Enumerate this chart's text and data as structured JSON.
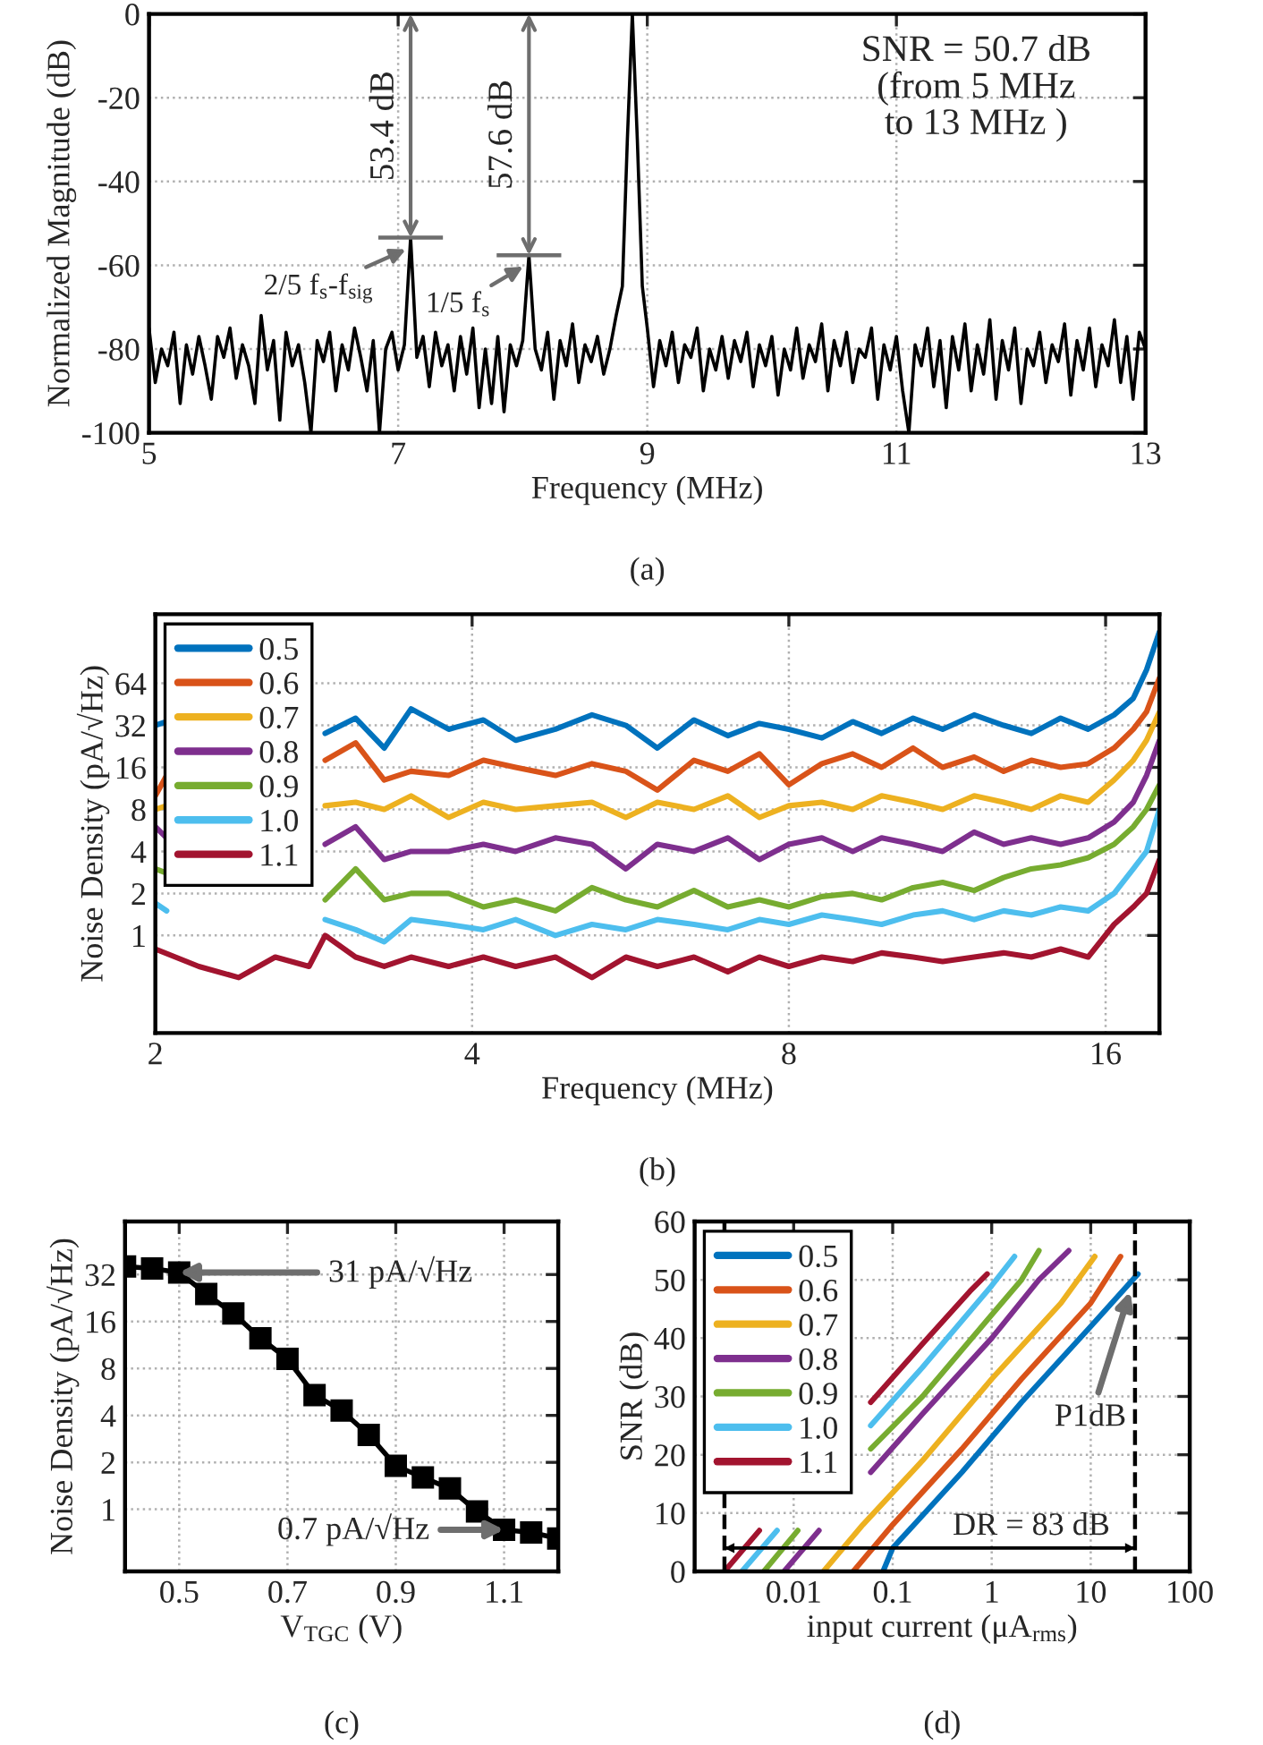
{
  "chart_data": [
    {
      "type": "line",
      "xlabel": "Frequency (MHz)",
      "ylabel": "Normalized Magnitude (dB)",
      "xlim": [
        5,
        13
      ],
      "ylim": [
        -100,
        0
      ],
      "xticks": [
        5,
        7,
        9,
        11,
        13
      ],
      "yticks": [
        -100,
        -80,
        -60,
        -40,
        -20,
        0
      ],
      "grid": true,
      "series": [
        {
          "color": "#000000",
          "x": [
            5.0,
            5.05,
            5.1,
            5.15,
            5.2,
            5.25,
            5.3,
            5.35,
            5.4,
            5.45,
            5.5,
            5.55,
            5.6,
            5.65,
            5.7,
            5.75,
            5.8,
            5.85,
            5.9,
            5.95,
            6.0,
            6.05,
            6.1,
            6.15,
            6.2,
            6.25,
            6.3,
            6.35,
            6.4,
            6.45,
            6.5,
            6.55,
            6.6,
            6.65,
            6.7,
            6.75,
            6.8,
            6.85,
            6.9,
            6.95,
            7.0,
            7.05,
            7.1,
            7.15,
            7.2,
            7.25,
            7.3,
            7.35,
            7.4,
            7.45,
            7.5,
            7.55,
            7.6,
            7.65,
            7.7,
            7.75,
            7.8,
            7.85,
            7.9,
            7.95,
            8.0,
            8.05,
            8.1,
            8.15,
            8.2,
            8.25,
            8.3,
            8.35,
            8.4,
            8.45,
            8.5,
            8.55,
            8.6,
            8.65,
            8.7,
            8.75,
            8.8,
            8.84,
            8.88,
            8.92,
            8.96,
            9.0,
            9.05,
            9.1,
            9.15,
            9.2,
            9.25,
            9.3,
            9.35,
            9.4,
            9.45,
            9.5,
            9.55,
            9.6,
            9.65,
            9.7,
            9.75,
            9.8,
            9.85,
            9.9,
            9.95,
            10.0,
            10.05,
            10.1,
            10.15,
            10.2,
            10.25,
            10.3,
            10.35,
            10.4,
            10.45,
            10.5,
            10.55,
            10.6,
            10.65,
            10.7,
            10.75,
            10.8,
            10.85,
            10.9,
            10.95,
            11.0,
            11.05,
            11.1,
            11.15,
            11.2,
            11.25,
            11.3,
            11.35,
            11.4,
            11.45,
            11.5,
            11.55,
            11.6,
            11.65,
            11.7,
            11.75,
            11.8,
            11.85,
            11.9,
            11.95,
            12.0,
            12.05,
            12.1,
            12.15,
            12.2,
            12.25,
            12.3,
            12.35,
            12.4,
            12.45,
            12.5,
            12.55,
            12.6,
            12.65,
            12.7,
            12.75,
            12.8,
            12.85,
            12.9,
            12.95,
            13.0
          ],
          "values": [
            -75,
            -88,
            -80,
            -84,
            -76,
            -93,
            -79,
            -86,
            -77,
            -84,
            -92,
            -77,
            -82,
            -75,
            -87,
            -79,
            -84,
            -93,
            -72,
            -85,
            -78,
            -97,
            -76,
            -84,
            -79,
            -88,
            -100,
            -78,
            -83,
            -76,
            -90,
            -79,
            -85,
            -75,
            -82,
            -90,
            -78,
            -100,
            -80,
            -76,
            -85,
            -79,
            -53.4,
            -82,
            -77,
            -89,
            -76,
            -84,
            -79,
            -90,
            -77,
            -86,
            -75,
            -94,
            -80,
            -93,
            -77,
            -95,
            -79,
            -84,
            -78,
            -57.6,
            -80,
            -85,
            -76,
            -92,
            -78,
            -84,
            -74,
            -88,
            -79,
            -83,
            -77,
            -86,
            -80,
            -72,
            -65,
            -30,
            0,
            -30,
            -65,
            -75,
            -89,
            -78,
            -84,
            -76,
            -88,
            -79,
            -82,
            -75,
            -90,
            -80,
            -85,
            -77,
            -87,
            -78,
            -83,
            -76,
            -89,
            -79,
            -84,
            -77,
            -91,
            -80,
            -85,
            -75,
            -87,
            -79,
            -83,
            -74,
            -90,
            -78,
            -84,
            -76,
            -88,
            -80,
            -82,
            -75,
            -92,
            -79,
            -85,
            -77,
            -90,
            -100,
            -79,
            -84,
            -75,
            -89,
            -78,
            -94,
            -77,
            -85,
            -74,
            -90,
            -79,
            -86,
            -73,
            -92,
            -78,
            -85,
            -75,
            -93,
            -80,
            -84,
            -76,
            -88,
            -79,
            -83,
            -74,
            -91,
            -78,
            -85,
            -75,
            -89,
            -79,
            -84,
            -73,
            -88,
            -77,
            -92,
            -76,
            -80
          ]
        }
      ],
      "annotations": [
        {
          "text": "53.4 dB",
          "x": 7.1,
          "y": -53.4
        },
        {
          "text": "57.6 dB",
          "x": 8.05,
          "y": -57.6
        },
        {
          "text": "2/5 f$_{s}$-f$_{sig}$",
          "x": 7.08,
          "y": -56
        },
        {
          "text": "1/5 f$_{s}$",
          "x": 8.02,
          "y": -60
        },
        "SNR = 50.7 dB\n(from 5 MHz\nto 13 MHz )",
        "(a)"
      ]
    },
    {
      "type": "line",
      "xlabel": "Frequency (MHz)",
      "ylabel": "Noise Density (pA/√Hz)",
      "log": "xy",
      "xlim": [
        2,
        18
      ],
      "ylim": [
        0.2,
        200
      ],
      "xticks": [
        2,
        4,
        8,
        16
      ],
      "yticks": [
        1,
        2,
        4,
        8,
        16,
        32,
        64
      ],
      "grid": true,
      "legend": "top left",
      "series": [
        {
          "name": "0.5",
          "color": "#0072bd",
          "x": [
            2.0,
            2.05,
            2.1,
            2.9,
            3.1,
            3.3,
            3.5,
            3.8,
            4.1,
            4.4,
            4.8,
            5.2,
            5.6,
            6.0,
            6.5,
            7.0,
            7.5,
            8.0,
            8.6,
            9.2,
            9.8,
            10.5,
            11.2,
            12.0,
            12.8,
            13.6,
            14.5,
            15.4,
            16.3,
            17.0,
            17.5,
            18.0
          ],
          "values": [
            32,
            34,
            null,
            28,
            36,
            22,
            42,
            30,
            35,
            25,
            30,
            38,
            32,
            22,
            35,
            27,
            33,
            30,
            26,
            34,
            28,
            36,
            30,
            38,
            32,
            28,
            36,
            30,
            38,
            50,
            80,
            150
          ]
        },
        {
          "name": "0.6",
          "color": "#d95319",
          "x": [
            2.0,
            2.05,
            2.1,
            2.9,
            3.1,
            3.3,
            3.5,
            3.8,
            4.1,
            4.4,
            4.8,
            5.2,
            5.6,
            6.0,
            6.5,
            7.0,
            7.5,
            8.0,
            8.6,
            9.2,
            9.8,
            10.5,
            11.2,
            12.0,
            12.8,
            13.6,
            14.5,
            15.4,
            16.3,
            17.0,
            17.5,
            18.0
          ],
          "values": [
            10,
            14,
            null,
            18,
            24,
            13,
            15,
            14,
            18,
            16,
            14,
            17,
            15,
            11,
            18,
            15,
            20,
            12,
            17,
            20,
            16,
            22,
            16,
            19,
            15,
            18,
            16,
            17,
            22,
            30,
            40,
            70
          ]
        },
        {
          "name": "0.7",
          "color": "#edb120",
          "x": [
            2.0,
            2.05,
            2.1,
            2.9,
            3.1,
            3.3,
            3.5,
            3.8,
            4.1,
            4.4,
            4.8,
            5.2,
            5.6,
            6.0,
            6.5,
            7.0,
            7.5,
            8.0,
            8.6,
            9.2,
            9.8,
            10.5,
            11.2,
            12.0,
            12.8,
            13.6,
            14.5,
            15.4,
            16.3,
            17.0,
            17.5,
            18.0
          ],
          "values": [
            8,
            8.5,
            null,
            8.5,
            9,
            8,
            10,
            7,
            9,
            8,
            8.5,
            9,
            7,
            9,
            8,
            10,
            7,
            8.5,
            9,
            8,
            10,
            9,
            8,
            10,
            9,
            8,
            10,
            9,
            13,
            18,
            25,
            40
          ]
        },
        {
          "name": "0.8",
          "color": "#7e2f8e",
          "x": [
            2.0,
            2.05,
            2.1,
            2.9,
            3.1,
            3.3,
            3.5,
            3.8,
            4.1,
            4.4,
            4.8,
            5.2,
            5.6,
            6.0,
            6.5,
            7.0,
            7.5,
            8.0,
            8.6,
            9.2,
            9.8,
            10.5,
            11.2,
            12.0,
            12.8,
            13.6,
            14.5,
            15.4,
            16.3,
            17.0,
            17.5,
            18.0
          ],
          "values": [
            6,
            5,
            null,
            4.5,
            6,
            3.5,
            4,
            4,
            4.5,
            4,
            5,
            4.5,
            3,
            4.5,
            4,
            5,
            3.5,
            4.5,
            5,
            4,
            5,
            4.5,
            4,
            5.5,
            4.5,
            5,
            4.5,
            5,
            6.5,
            9,
            14,
            25
          ]
        },
        {
          "name": "0.9",
          "color": "#77ac30",
          "x": [
            2.0,
            2.05,
            2.1,
            2.9,
            3.1,
            3.3,
            3.5,
            3.8,
            4.1,
            4.4,
            4.8,
            5.2,
            5.6,
            6.0,
            6.5,
            7.0,
            7.5,
            8.0,
            8.6,
            9.2,
            9.8,
            10.5,
            11.2,
            12.0,
            12.8,
            13.6,
            14.5,
            15.4,
            16.3,
            17.0,
            17.5,
            18.0
          ],
          "values": [
            3,
            2.8,
            null,
            1.8,
            3,
            1.8,
            2,
            2,
            1.6,
            1.8,
            1.5,
            2.2,
            1.8,
            1.6,
            2.1,
            1.6,
            1.8,
            1.6,
            1.9,
            2,
            1.8,
            2.2,
            2.4,
            2.1,
            2.6,
            3,
            3.2,
            3.6,
            4.5,
            6,
            8,
            12
          ]
        },
        {
          "name": "1.0",
          "color": "#4dbeee",
          "x": [
            2.0,
            2.05,
            2.1,
            2.9,
            3.1,
            3.3,
            3.5,
            3.8,
            4.1,
            4.4,
            4.8,
            5.2,
            5.6,
            6.0,
            6.5,
            7.0,
            7.5,
            8.0,
            8.6,
            9.2,
            9.8,
            10.5,
            11.2,
            12.0,
            12.8,
            13.6,
            14.5,
            15.4,
            16.3,
            17.0,
            17.5,
            18.0
          ],
          "values": [
            1.7,
            1.5,
            null,
            1.3,
            1.1,
            0.9,
            1.3,
            1.2,
            1.1,
            1.3,
            1.0,
            1.2,
            1.1,
            1.3,
            1.2,
            1.1,
            1.3,
            1.2,
            1.4,
            1.3,
            1.2,
            1.4,
            1.5,
            1.3,
            1.5,
            1.4,
            1.6,
            1.5,
            2,
            3,
            4,
            8
          ]
        },
        {
          "name": "1.1",
          "color": "#a2142f",
          "x": [
            2.0,
            2.2,
            2.4,
            2.6,
            2.8,
            2.9,
            3.1,
            3.3,
            3.5,
            3.8,
            4.1,
            4.4,
            4.8,
            5.2,
            5.6,
            6.0,
            6.5,
            7.0,
            7.5,
            8.0,
            8.6,
            9.2,
            9.8,
            10.5,
            11.2,
            12.0,
            12.8,
            13.6,
            14.5,
            15.4,
            16.3,
            17.0,
            17.5,
            18.0
          ],
          "values": [
            0.8,
            0.6,
            0.5,
            0.7,
            0.6,
            1.0,
            0.7,
            0.6,
            0.7,
            0.6,
            0.7,
            0.6,
            0.7,
            0.5,
            0.7,
            0.6,
            0.7,
            0.55,
            0.7,
            0.6,
            0.7,
            0.65,
            0.75,
            0.7,
            0.65,
            0.7,
            0.75,
            0.7,
            0.8,
            0.7,
            1.2,
            1.6,
            2,
            3.5
          ]
        }
      ],
      "annotations": [
        "(b)"
      ]
    },
    {
      "type": "line",
      "xlabel": "V$_{TGC}$ (V)",
      "ylabel": "Noise Density (pA/√Hz)",
      "log": "y",
      "xlim": [
        0.4,
        1.2
      ],
      "ylim": [
        0.4,
        70
      ],
      "xticks": [
        0.5,
        0.7,
        0.9,
        1.1
      ],
      "yticks": [
        1,
        2,
        4,
        8,
        16,
        32
      ],
      "grid": true,
      "marker": "square",
      "series": [
        {
          "color": "#000000",
          "x": [
            0.4,
            0.45,
            0.5,
            0.55,
            0.6,
            0.65,
            0.7,
            0.75,
            0.8,
            0.85,
            0.9,
            0.95,
            1.0,
            1.05,
            1.1,
            1.15,
            1.2
          ],
          "values": [
            36,
            35,
            33,
            24,
            18,
            12.5,
            9.2,
            5.4,
            4.3,
            3.0,
            1.9,
            1.6,
            1.36,
            0.97,
            0.74,
            0.71,
            0.65
          ]
        }
      ],
      "annotations": [
        {
          "text": "31 pA/√Hz",
          "x": 0.5,
          "y": 33
        },
        {
          "text": "0.7 pA/√Hz",
          "x": 1.1,
          "y": 0.74
        },
        "(c)"
      ]
    },
    {
      "type": "line",
      "xlabel": "input current (μA$_{rms}$)",
      "ylabel": "SNR (dB)",
      "log": "x",
      "xlim": [
        0.001,
        100
      ],
      "ylim": [
        0,
        60
      ],
      "xticks": [
        0.01,
        0.1,
        1,
        10,
        100
      ],
      "yticks": [
        0,
        10,
        20,
        30,
        40,
        50,
        60
      ],
      "grid": true,
      "legend": "top left",
      "series": [
        {
          "name": "0.5",
          "color": "#0072bd",
          "x": [
            0.08,
            0.1,
            0.5,
            2,
            10,
            30
          ],
          "values": [
            0,
            4,
            17,
            29,
            42,
            51
          ]
        },
        {
          "name": "0.6",
          "color": "#d95319",
          "x": [
            0.04,
            0.1,
            0.5,
            2,
            10,
            20
          ],
          "values": [
            0,
            8,
            21,
            33,
            46,
            54
          ]
        },
        {
          "name": "0.7",
          "color": "#edb120",
          "x": [
            0.02,
            0.05,
            0.2,
            1,
            5,
            11
          ],
          "values": [
            0,
            8,
            19,
            33,
            46,
            54
          ]
        },
        {
          "name": "0.8",
          "color": "#7e2f8e",
          "x": [
            0.008,
            0.018,
            0.04,
            0.06,
            0.2,
            1,
            3,
            6
          ],
          "values": [
            0,
            7,
            null,
            17,
            27,
            40,
            50,
            55
          ]
        },
        {
          "name": "0.9",
          "color": "#77ac30",
          "x": [
            0.005,
            0.011,
            0.04,
            0.06,
            0.2,
            1,
            2,
            3
          ],
          "values": [
            0,
            7,
            null,
            21,
            30,
            44,
            50,
            55
          ]
        },
        {
          "name": "1.0",
          "color": "#4dbeee",
          "x": [
            0.003,
            0.0068,
            0.04,
            0.06,
            0.2,
            1,
            1.7
          ],
          "values": [
            0,
            7,
            null,
            25,
            35,
            49,
            54
          ]
        },
        {
          "name": "1.1",
          "color": "#a2142f",
          "x": [
            0.002,
            0.0045,
            0.04,
            0.06,
            0.2,
            0.6,
            0.9
          ],
          "values": [
            0,
            7,
            null,
            29,
            39,
            48,
            51
          ]
        },
        {
          "color": "#000000",
          "x": [
            0.002,
            28
          ],
          "values": [
            4,
            4
          ]
        }
      ],
      "ref_lines": [
        {
          "axis": "x",
          "value": 28,
          "color": "#000000",
          "line_style": "dashed"
        },
        {
          "axis": "x",
          "value": 0.002,
          "color": "#000000",
          "line_style": "dashed"
        }
      ],
      "annotations": [
        "DR = 83 dB",
        {
          "text": "P1dB",
          "x": 25,
          "y": 48
        },
        "(d)"
      ]
    }
  ]
}
